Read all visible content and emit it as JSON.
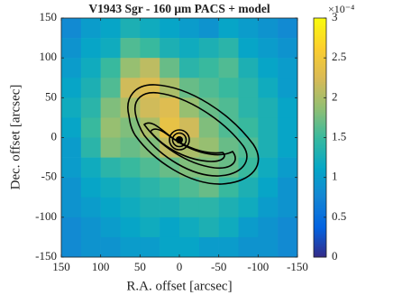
{
  "chart_data": {
    "type": "heatmap",
    "title": "V1943 Sgr - 160 μm PACS + model",
    "x_label": "R.A. offset [arcsec]",
    "y_label": "Dec. offset [arcsec]",
    "xlim": [
      150,
      -150
    ],
    "ylim": [
      -150,
      150
    ],
    "xticks": [
      150,
      100,
      50,
      0,
      -50,
      -100,
      -150
    ],
    "yticks": [
      -150,
      -100,
      -50,
      0,
      50,
      100,
      150
    ],
    "x": [
      137.5,
      112.5,
      87.5,
      62.5,
      37.5,
      12.5,
      -12.5,
      -37.5,
      -62.5,
      -87.5,
      -112.5,
      -137.5
    ],
    "y": [
      137.5,
      112.5,
      87.5,
      62.5,
      37.5,
      12.5,
      -12.5,
      -37.5,
      -62.5,
      -87.5,
      -112.5,
      -137.5
    ],
    "z": [
      [
        8e-05,
        0.0001,
        0.00011,
        0.00013,
        0.00012,
        0.00011,
        0.0001,
        9e-05,
        0.00011,
        0.0001,
        9e-05,
        8e-05
      ],
      [
        9e-05,
        0.00011,
        0.00012,
        0.00016,
        0.00015,
        0.00013,
        0.00012,
        0.00013,
        0.00014,
        0.00011,
        0.0001,
        9e-05
      ],
      [
        0.0001,
        0.00012,
        0.00015,
        0.00019,
        0.00021,
        0.00017,
        0.00014,
        0.00015,
        0.00016,
        0.00013,
        0.00011,
        0.0001
      ],
      [
        0.00011,
        0.00013,
        0.00016,
        0.00022,
        0.00023,
        0.0002,
        0.00017,
        0.00016,
        0.00015,
        0.00014,
        0.00012,
        0.0001
      ],
      [
        0.00012,
        0.00014,
        0.00018,
        0.0002,
        0.00022,
        0.00023,
        0.00019,
        0.00017,
        0.00016,
        0.00014,
        0.00013,
        0.00011
      ],
      [
        0.00011,
        0.00015,
        0.00019,
        0.00018,
        0.0002,
        0.00024,
        0.00022,
        0.00018,
        0.00016,
        0.00015,
        0.00013,
        0.00011
      ],
      [
        0.0001,
        0.00014,
        0.00018,
        0.00017,
        0.00018,
        0.00021,
        0.0002,
        0.00019,
        0.00017,
        0.00016,
        0.00013,
        0.00011
      ],
      [
        0.0001,
        0.00012,
        0.00014,
        0.00015,
        0.00016,
        0.00017,
        0.00018,
        0.00018,
        0.00017,
        0.00015,
        0.00012,
        0.0001
      ],
      [
        9e-05,
        0.00011,
        0.00012,
        0.00013,
        0.00014,
        0.00015,
        0.00016,
        0.00017,
        0.00015,
        0.00013,
        0.00011,
        9e-05
      ],
      [
        9e-05,
        0.0001,
        0.00011,
        0.00012,
        0.00013,
        0.00013,
        0.00014,
        0.00014,
        0.00013,
        0.00012,
        0.0001,
        9e-05
      ],
      [
        8e-05,
        9e-05,
        0.0001,
        0.00011,
        0.00012,
        0.00011,
        0.00012,
        0.00013,
        0.00012,
        0.0001,
        9e-05,
        8e-05
      ],
      [
        8e-05,
        9e-05,
        9e-05,
        0.0001,
        0.0001,
        0.00011,
        0.00011,
        0.0001,
        0.0001,
        9e-05,
        9e-05,
        8e-05
      ]
    ],
    "clim": [
      0,
      0.0003
    ],
    "cticks": [
      0,
      {
        "value": 5e-05,
        "label": "0.5"
      },
      {
        "value": 0.0001,
        "label": "1"
      },
      {
        "value": 0.00015,
        "label": "1.5"
      },
      {
        "value": 0.0002,
        "label": "2"
      },
      {
        "value": 0.00025,
        "label": "2.5"
      },
      {
        "value": 0.0003,
        "label": "3"
      }
    ],
    "colorbar_scale": "×10⁻⁴",
    "colormap": [
      "#352a87",
      "#0363e1",
      "#1485d4",
      "#06a7c6",
      "#38b99e",
      "#92bf73",
      "#d9ba56",
      "#fcce2e",
      "#f9fb0e"
    ]
  }
}
